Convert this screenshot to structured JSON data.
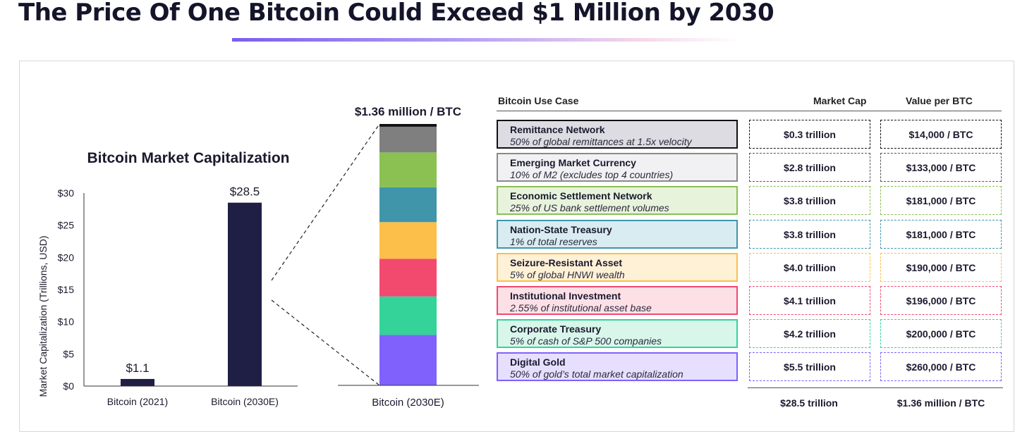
{
  "headline": "The Price Of One Bitcoin Could Exceed $1 Million by 2030",
  "chart_data": [
    {
      "type": "bar",
      "title": "Bitcoin Market Capitalization",
      "ylabel": "Market Capitalization (Trillions, USD)",
      "ylim": [
        0,
        30
      ],
      "yticks": [
        "$0",
        "$5",
        "$10",
        "$15",
        "$20",
        "$25",
        "$30"
      ],
      "tick_values": [
        0,
        5,
        10,
        15,
        20,
        25,
        30
      ],
      "categories": [
        "Bitcoin (2021)",
        "Bitcoin (2030E)"
      ],
      "values": [
        1.1,
        28.5
      ],
      "data_labels": [
        "$1.1",
        "$28.5"
      ],
      "bar_color": "#1f1f45"
    },
    {
      "type": "bar",
      "stacked": true,
      "category": "Bitcoin (2030E)",
      "top_label": "$1.36 million / BTC",
      "ylim": [
        0,
        28.5
      ],
      "series": [
        {
          "name": "Digital Gold",
          "value": 5.5,
          "color": "#8061fb"
        },
        {
          "name": "Corporate Treasury",
          "value": 4.2,
          "color": "#34d399"
        },
        {
          "name": "Institutional Investment",
          "value": 4.1,
          "color": "#f2496f"
        },
        {
          "name": "Seizure-Resistant Asset",
          "value": 4.0,
          "color": "#fcbf49"
        },
        {
          "name": "Nation-State Treasury",
          "value": 3.8,
          "color": "#4095aa"
        },
        {
          "name": "Economic Settlement Network",
          "value": 3.8,
          "color": "#8bc053"
        },
        {
          "name": "Emerging Market Currency",
          "value": 2.8,
          "color": "#7f7f7f"
        },
        {
          "name": "Remittance Network",
          "value": 0.3,
          "color": "#111111"
        }
      ]
    }
  ],
  "table": {
    "headers": {
      "use_case": "Bitcoin Use Case",
      "market_cap": "Market Cap",
      "value_per_btc": "Value per BTC"
    },
    "rows": [
      {
        "name": "Remittance Network",
        "desc": "50% of global remittances at 1.5x velocity",
        "market_cap": "$0.3 trillion",
        "value": "$14,000 / BTC",
        "fill": "#dcdce2",
        "border": "#111111",
        "dash": "#111111"
      },
      {
        "name": "Emerging Market Currency",
        "desc": "10% of M2 (excludes top 4 countries)",
        "market_cap": "$2.8 trillion",
        "value": "$133,000 / BTC",
        "fill": "#f1f1f3",
        "border": "#8a8a8a",
        "dash": "#555555"
      },
      {
        "name": "Economic Settlement Network",
        "desc": "25% of US bank settlement volumes",
        "market_cap": "$3.8 trillion",
        "value": "$181,000 / BTC",
        "fill": "#e8f3dc",
        "border": "#8bc053",
        "dash": "#8bc053"
      },
      {
        "name": "Nation-State Treasury",
        "desc": "1% of total reserves",
        "market_cap": "$3.8 trillion",
        "value": "$181,000 / BTC",
        "fill": "#d9ecf1",
        "border": "#4095aa",
        "dash": "#4095aa"
      },
      {
        "name": "Seizure-Resistant Asset",
        "desc": "5% of global HNWI wealth",
        "market_cap": "$4.0 trillion",
        "value": "$190,000 / BTC",
        "fill": "#fff1d6",
        "border": "#fcbf49",
        "dash": "#fcbf49"
      },
      {
        "name": "Institutional Investment",
        "desc": "2.55% of institutional asset base",
        "market_cap": "$4.1 trillion",
        "value": "$196,000 / BTC",
        "fill": "#fde0e6",
        "border": "#f2496f",
        "dash": "#f2496f"
      },
      {
        "name": "Corporate Treasury",
        "desc": "5% of cash of S&P 500 companies",
        "market_cap": "$4.2 trillion",
        "value": "$200,000 / BTC",
        "fill": "#d8f6ea",
        "border": "#34d399",
        "dash": "#34d399"
      },
      {
        "name": "Digital Gold",
        "desc": "50% of gold’s total market capitalization",
        "market_cap": "$5.5 trillion",
        "value": "$260,000 / BTC",
        "fill": "#e6e0fe",
        "border": "#8061fb",
        "dash": "#8061fb"
      }
    ],
    "totals": {
      "market_cap": "$28.5 trillion",
      "value": "$1.36 million / BTC"
    }
  }
}
